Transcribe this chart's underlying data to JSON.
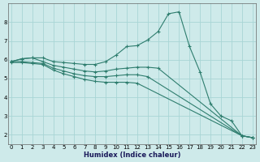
{
  "xlabel": "Humidex (Indice chaleur)",
  "bg_color": "#ceeaea",
  "grid_color": "#a8d5d5",
  "line_color": "#2e7d6e",
  "line1_x": [
    0,
    1,
    2,
    3,
    4,
    5,
    6,
    7,
    8,
    9,
    10,
    11,
    12,
    13,
    14,
    15,
    16,
    17,
    18,
    19,
    20,
    21,
    22,
    23
  ],
  "line1_y": [
    5.9,
    6.05,
    6.1,
    6.1,
    5.9,
    5.85,
    5.8,
    5.75,
    5.75,
    5.9,
    6.25,
    6.7,
    6.75,
    7.05,
    7.5,
    8.45,
    8.55,
    6.7,
    5.35,
    3.65,
    3.0,
    2.75,
    1.95,
    1.85
  ],
  "line2_x": [
    0,
    1,
    2,
    3,
    4,
    5,
    6,
    7,
    8,
    9,
    10,
    11,
    12,
    13,
    14,
    22,
    23
  ],
  "line2_y": [
    5.9,
    6.05,
    6.1,
    5.9,
    5.7,
    5.6,
    5.5,
    5.4,
    5.35,
    5.4,
    5.5,
    5.55,
    5.6,
    5.6,
    5.55,
    1.95,
    1.85
  ],
  "line3_x": [
    0,
    1,
    2,
    3,
    4,
    5,
    6,
    7,
    8,
    9,
    10,
    11,
    12,
    13,
    22,
    23
  ],
  "line3_y": [
    5.9,
    5.9,
    5.85,
    5.8,
    5.55,
    5.4,
    5.25,
    5.15,
    5.1,
    5.1,
    5.15,
    5.2,
    5.2,
    5.1,
    1.95,
    1.85
  ],
  "line4_x": [
    0,
    1,
    2,
    3,
    4,
    5,
    6,
    7,
    8,
    9,
    10,
    11,
    12,
    22,
    23
  ],
  "line4_y": [
    5.85,
    5.85,
    5.8,
    5.75,
    5.45,
    5.25,
    5.1,
    4.95,
    4.85,
    4.8,
    4.8,
    4.8,
    4.75,
    1.95,
    1.85
  ],
  "xlim": [
    -0.3,
    23.3
  ],
  "ylim": [
    1.5,
    9.0
  ],
  "yticks": [
    2,
    3,
    4,
    5,
    6,
    7,
    8
  ],
  "xticks": [
    0,
    1,
    2,
    3,
    4,
    5,
    6,
    7,
    8,
    9,
    10,
    11,
    12,
    13,
    14,
    15,
    16,
    17,
    18,
    19,
    20,
    21,
    22,
    23
  ],
  "marker": "+",
  "markersize": 3,
  "linewidth": 0.8
}
